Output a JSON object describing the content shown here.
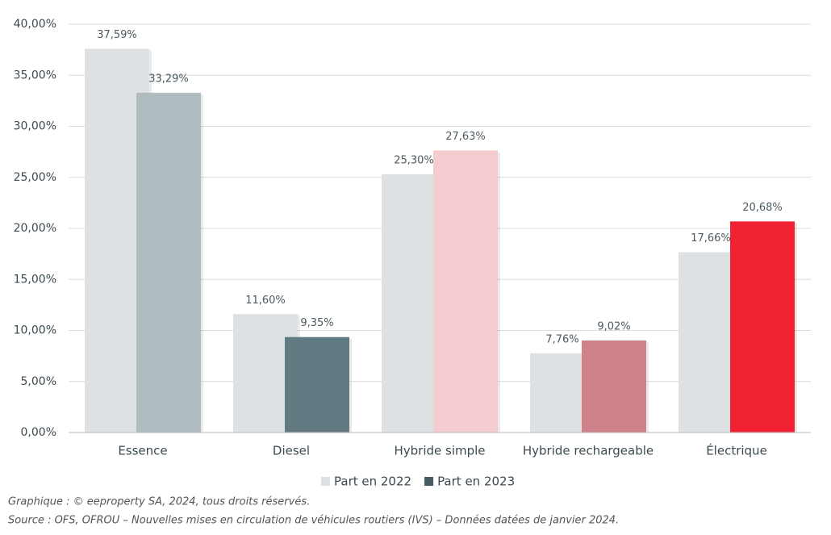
{
  "chart_data": {
    "type": "bar",
    "categories": [
      "Essence",
      "Diesel",
      "Hybride simple",
      "Hybride rechargeable",
      "Électrique"
    ],
    "series": [
      {
        "name": "Part en 2022",
        "color": "#dde1e4",
        "values": [
          37.59,
          11.6,
          25.3,
          7.76,
          17.66
        ],
        "value_labels": [
          "37,59%",
          "11,60%",
          "25,30%",
          "7,76%",
          "17,66%"
        ]
      },
      {
        "name": "Part en 2023",
        "color": "#455a62",
        "colors": [
          "#b0bcbf",
          "#627a82",
          "#f5ccd0",
          "#d0828b",
          "#f02233"
        ],
        "values": [
          33.29,
          9.35,
          27.63,
          9.02,
          20.68
        ],
        "value_labels": [
          "33,29%",
          "9,35%",
          "27,63%",
          "9,02%",
          "20,68%"
        ]
      }
    ],
    "ylim": [
      0,
      40
    ],
    "yticks": [
      {
        "value": 0,
        "label": "0,00%"
      },
      {
        "value": 5,
        "label": "5,00%"
      },
      {
        "value": 10,
        "label": "10,00%"
      },
      {
        "value": 15,
        "label": "15,00%"
      },
      {
        "value": 20,
        "label": "20,00%"
      },
      {
        "value": 25,
        "label": "25,00%"
      },
      {
        "value": 30,
        "label": "30,00%"
      },
      {
        "value": 35,
        "label": "35,00%"
      },
      {
        "value": 40,
        "label": "40,00%"
      }
    ],
    "grid": true,
    "legend": "bottom",
    "footnotes": [
      "Graphique : © eeproperty SA, 2024, tous droits réservés.",
      "Source : OFS, OFROU – Nouvelles mises en circulation de véhicules routiers (IVS) – Données datées de janvier 2024."
    ]
  }
}
